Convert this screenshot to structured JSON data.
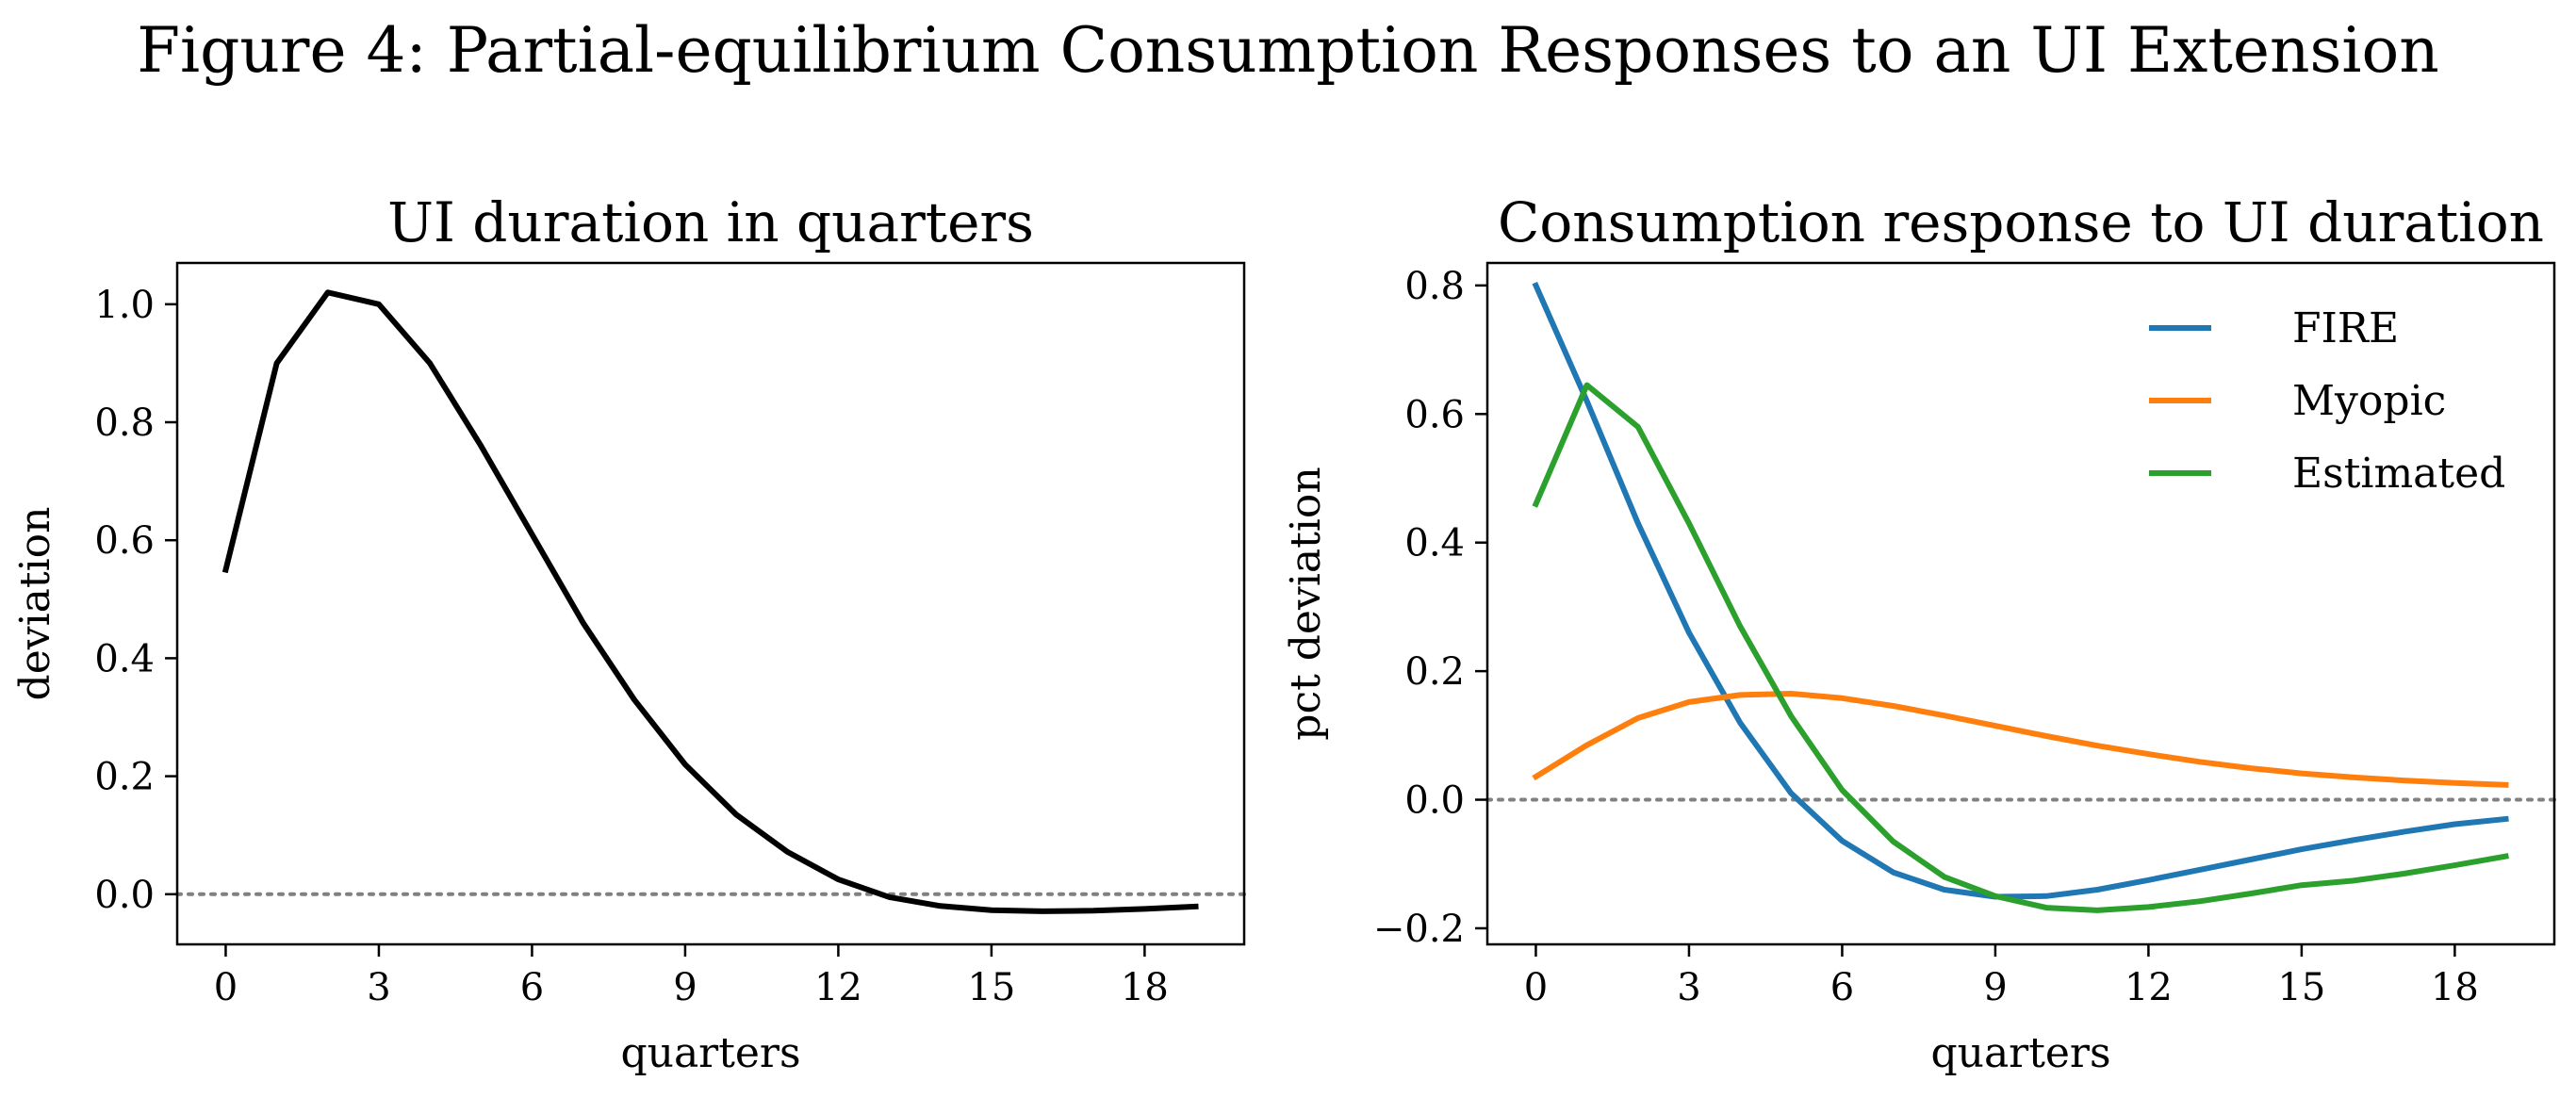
{
  "figure_title": "Figure 4: Partial-equilibrium Consumption Responses to an UI Extension",
  "chart_data": [
    {
      "type": "line",
      "title": "UI duration in quarters",
      "xlabel": "quarters",
      "ylabel": "deviation",
      "xlim": [
        -0.95,
        19.95
      ],
      "ylim": [
        -0.085,
        1.07
      ],
      "xticks": [
        0,
        3,
        6,
        9,
        12,
        15,
        18
      ],
      "yticks": [
        0.0,
        0.2,
        0.4,
        0.6,
        0.8,
        1.0
      ],
      "ytick_labels": [
        "0.0",
        "0.2",
        "0.4",
        "0.6",
        "0.8",
        "1.0"
      ],
      "zero_line": {
        "y": 0,
        "style": "dotted",
        "color": "#808080"
      },
      "grid": false,
      "series": [
        {
          "color": "#000000",
          "x": [
            0,
            1,
            2,
            3,
            4,
            5,
            6,
            7,
            8,
            9,
            10,
            11,
            12,
            13,
            14,
            15,
            16,
            17,
            18,
            19
          ],
          "y": [
            0.55,
            0.9,
            1.02,
            1.0,
            0.9,
            0.76,
            0.61,
            0.46,
            0.33,
            0.22,
            0.135,
            0.072,
            0.025,
            -0.005,
            -0.02,
            -0.027,
            -0.029,
            -0.028,
            -0.025,
            -0.021
          ]
        }
      ]
    },
    {
      "type": "line",
      "title": "Consumption response to UI duration",
      "xlabel": "quarters",
      "ylabel": "pct deviation",
      "xlim": [
        -0.95,
        19.95
      ],
      "ylim": [
        -0.225,
        0.835
      ],
      "xticks": [
        0,
        3,
        6,
        9,
        12,
        15,
        18
      ],
      "yticks": [
        -0.2,
        0.0,
        0.2,
        0.4,
        0.6,
        0.8
      ],
      "ytick_labels": [
        "−0.2",
        "0.0",
        "0.2",
        "0.4",
        "0.6",
        "0.8"
      ],
      "zero_line": {
        "y": 0,
        "style": "dotted",
        "color": "#808080"
      },
      "grid": false,
      "legend": "top-right",
      "series": [
        {
          "name": "FIRE",
          "color": "#1f77b4",
          "x": [
            0,
            1,
            2,
            3,
            4,
            5,
            6,
            7,
            8,
            9,
            10,
            11,
            12,
            13,
            14,
            15,
            16,
            17,
            18,
            19
          ],
          "y": [
            0.8,
            0.62,
            0.43,
            0.26,
            0.12,
            0.01,
            -0.064,
            -0.113,
            -0.14,
            -0.151,
            -0.15,
            -0.14,
            -0.125,
            -0.109,
            -0.093,
            -0.077,
            -0.063,
            -0.05,
            -0.038,
            -0.03
          ]
        },
        {
          "name": "Myopic",
          "color": "#ff7f0e",
          "x": [
            0,
            1,
            2,
            3,
            4,
            5,
            6,
            7,
            8,
            9,
            10,
            11,
            12,
            13,
            14,
            15,
            16,
            17,
            18,
            19
          ],
          "y": [
            0.036,
            0.085,
            0.127,
            0.152,
            0.163,
            0.165,
            0.158,
            0.146,
            0.131,
            0.115,
            0.099,
            0.084,
            0.071,
            0.059,
            0.049,
            0.041,
            0.035,
            0.03,
            0.026,
            0.023
          ]
        },
        {
          "name": "Estimated",
          "color": "#2ca02c",
          "x": [
            0,
            1,
            2,
            3,
            4,
            5,
            6,
            7,
            8,
            9,
            10,
            11,
            12,
            13,
            14,
            15,
            16,
            17,
            18,
            19
          ],
          "y": [
            0.46,
            0.645,
            0.58,
            0.43,
            0.27,
            0.13,
            0.015,
            -0.065,
            -0.12,
            -0.15,
            -0.168,
            -0.172,
            -0.167,
            -0.158,
            -0.146,
            -0.133,
            -0.126,
            -0.115,
            -0.102,
            -0.088
          ]
        }
      ]
    }
  ]
}
